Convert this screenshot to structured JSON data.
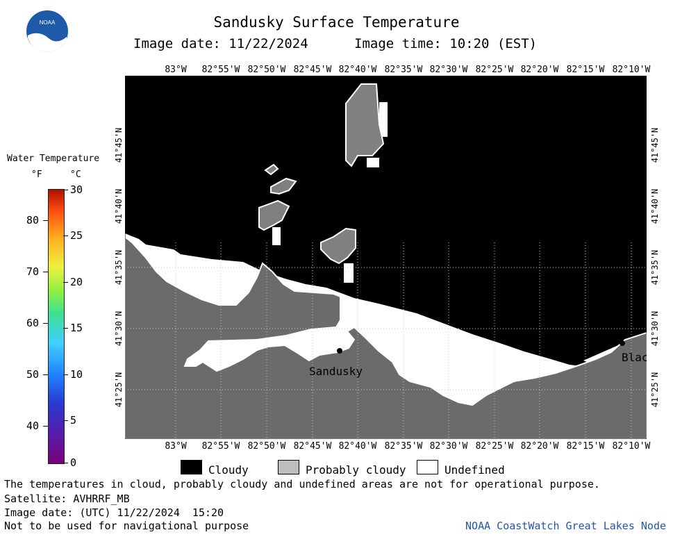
{
  "header": {
    "title": "Sandusky Surface Temperature",
    "image_date": "Image date: 11/22/2024",
    "image_time": "Image time: 10:20 (EST)"
  },
  "logo": {
    "text": "NOAA"
  },
  "lon_ticks": [
    "83°W",
    "82°55'W",
    "82°50'W",
    "82°45'W",
    "82°40'W",
    "82°35'W",
    "82°30'W",
    "82°25'W",
    "82°20'W",
    "82°15'W",
    "82°10'W"
  ],
  "lat_ticks": [
    "41°45'N",
    "41°40'N",
    "41°35'N",
    "41°30'N",
    "41°25'N"
  ],
  "colorbar": {
    "title": "Water Temperature",
    "unit_f": "°F",
    "unit_c": "°C",
    "f_labels": [
      "80",
      "70",
      "60",
      "50",
      "40"
    ],
    "c_labels": [
      "30",
      "25",
      "20",
      "15",
      "10",
      "5",
      "0"
    ]
  },
  "map": {
    "city_sandusky": "Sandusky",
    "city_partial": "Blac"
  },
  "legend": {
    "cloudy": "Cloudy",
    "probably_cloudy": "Probably cloudy",
    "undefined": "Undefined"
  },
  "colors": {
    "cloud": "#000000",
    "land": "#6b6b6b",
    "undefined": "#ffffff",
    "probably_cloudy": "#bdbdbd",
    "credit": "#2255aa"
  },
  "footer": {
    "disclaimer": "The temperatures in cloud, probably cloudy and undefined areas are not for operational purpose.",
    "satellite": "Satellite: AVHRRF_MB",
    "utc_date": "Image date: (UTC) 11/22/2024  15:20",
    "nav_note": "Not to be used for navigational purpose",
    "credit": "NOAA CoastWatch Great Lakes Node"
  }
}
